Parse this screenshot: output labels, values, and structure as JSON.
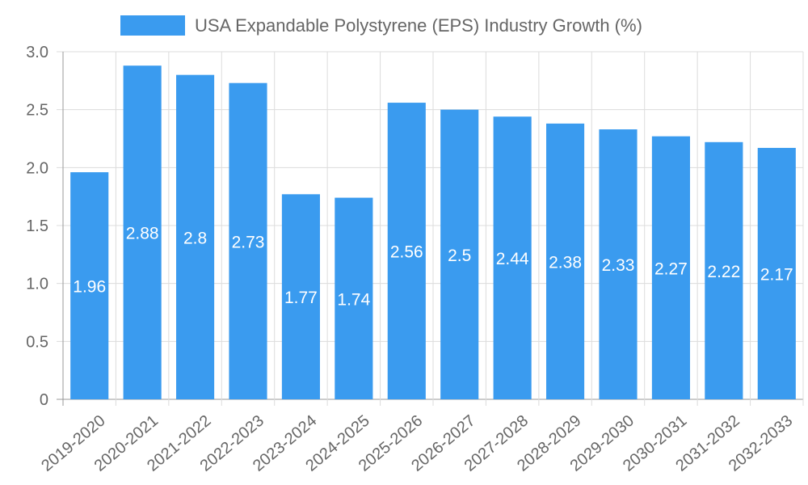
{
  "chart_data": {
    "type": "bar",
    "title": "",
    "xlabel": "",
    "ylabel": "",
    "ylim": [
      0,
      3.0
    ],
    "y_ticks": [
      "0",
      "0.5",
      "1.0",
      "1.5",
      "2.0",
      "2.5",
      "3.0"
    ],
    "y_tick_values": [
      0,
      0.5,
      1.0,
      1.5,
      2.0,
      2.5,
      3.0
    ],
    "grid": true,
    "legend_position": "top-center",
    "categories": [
      "2019-2020",
      "2020-2021",
      "2021-2022",
      "2022-2023",
      "2023-2024",
      "2024-2025",
      "2025-2026",
      "2026-2027",
      "2027-2028",
      "2028-2029",
      "2029-2030",
      "2030-2031",
      "2031-2032",
      "2032-2033"
    ],
    "series": [
      {
        "name": "USA Expandable Polystyrene (EPS) Industry Growth (%)",
        "color": "#3a9bef",
        "values": [
          1.96,
          2.88,
          2.8,
          2.73,
          1.77,
          1.74,
          2.56,
          2.5,
          2.44,
          2.38,
          2.33,
          2.27,
          2.22,
          2.17
        ],
        "labels": [
          "1.96",
          "2.88",
          "2.8",
          "2.73",
          "1.77",
          "1.74",
          "2.56",
          "2.5",
          "2.44",
          "2.38",
          "2.33",
          "2.27",
          "2.22",
          "2.17"
        ]
      }
    ]
  }
}
